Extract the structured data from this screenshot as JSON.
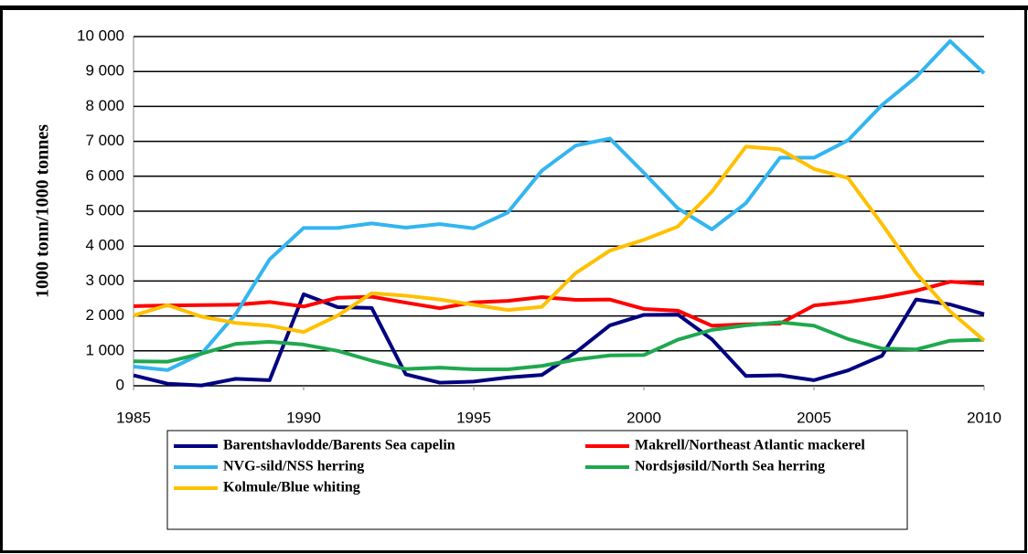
{
  "chart_data": {
    "type": "line",
    "y_label": "1000 tonn/1000 tonnes",
    "x": [
      1985,
      1986,
      1987,
      1988,
      1989,
      1990,
      1991,
      1992,
      1993,
      1994,
      1995,
      1996,
      1997,
      1998,
      1999,
      2000,
      2001,
      2002,
      2003,
      2004,
      2005,
      2006,
      2007,
      2008,
      2009,
      2010
    ],
    "xlim": [
      1985,
      2010
    ],
    "xticks": [
      1985,
      1990,
      1995,
      2000,
      2005,
      2010
    ],
    "ylim": [
      0,
      10000
    ],
    "yticks": [
      0,
      {
        "value": 1000,
        "label": "1 000"
      },
      {
        "value": 2000,
        "label": "2 000"
      },
      {
        "value": 3000,
        "label": "3 000"
      },
      {
        "value": 4000,
        "label": "4 000"
      },
      {
        "value": 5000,
        "label": "5 000"
      },
      {
        "value": 6000,
        "label": "6 000"
      },
      {
        "value": 7000,
        "label": "7 000"
      },
      {
        "value": 8000,
        "label": "8 000"
      },
      {
        "value": 9000,
        "label": "9 000"
      },
      {
        "value": 10000,
        "label": "10 000"
      }
    ],
    "grid": true,
    "series": [
      {
        "name": "Barentshavlodde/Barents Sea capelin",
        "color": "#000080",
        "values": [
          300,
          60,
          10,
          200,
          160,
          2620,
          2250,
          2230,
          330,
          90,
          120,
          240,
          310,
          960,
          1730,
          2030,
          2040,
          1330,
          280,
          300,
          160,
          440,
          860,
          2470,
          2330,
          2050
        ]
      },
      {
        "name": "Makrell/Northeast Atlantic mackerel",
        "color": "#ff0000",
        "values": [
          2280,
          2300,
          2310,
          2320,
          2400,
          2270,
          2520,
          2550,
          2380,
          2220,
          2390,
          2430,
          2540,
          2460,
          2470,
          2200,
          2150,
          1720,
          1760,
          1780,
          2300,
          2400,
          2540,
          2720,
          2980,
          2920
        ]
      },
      {
        "name": "NVG-sild/NSS herring",
        "color": "#33b5f0",
        "values": [
          550,
          450,
          920,
          2050,
          3620,
          4520,
          4520,
          4650,
          4530,
          4630,
          4510,
          4960,
          6160,
          6880,
          7080,
          6100,
          5080,
          4480,
          5230,
          6530,
          6530,
          7030,
          8040,
          8840,
          9870,
          8950
        ]
      },
      {
        "name": "Nordsjøsild/North Sea herring",
        "color": "#1fa84f",
        "values": [
          700,
          690,
          920,
          1200,
          1260,
          1180,
          1000,
          720,
          480,
          520,
          470,
          470,
          570,
          750,
          870,
          880,
          1320,
          1600,
          1730,
          1820,
          1720,
          1340,
          1070,
          1040,
          1290,
          1320
        ]
      },
      {
        "name": "Kolmule/Blue whiting",
        "color": "#ffc000",
        "values": [
          2010,
          2310,
          1980,
          1800,
          1720,
          1540,
          2010,
          2650,
          2580,
          2470,
          2320,
          2170,
          2260,
          3230,
          3870,
          4180,
          4560,
          5560,
          6850,
          6770,
          6210,
          5950,
          4630,
          3230,
          2130,
          1300
        ]
      }
    ]
  }
}
